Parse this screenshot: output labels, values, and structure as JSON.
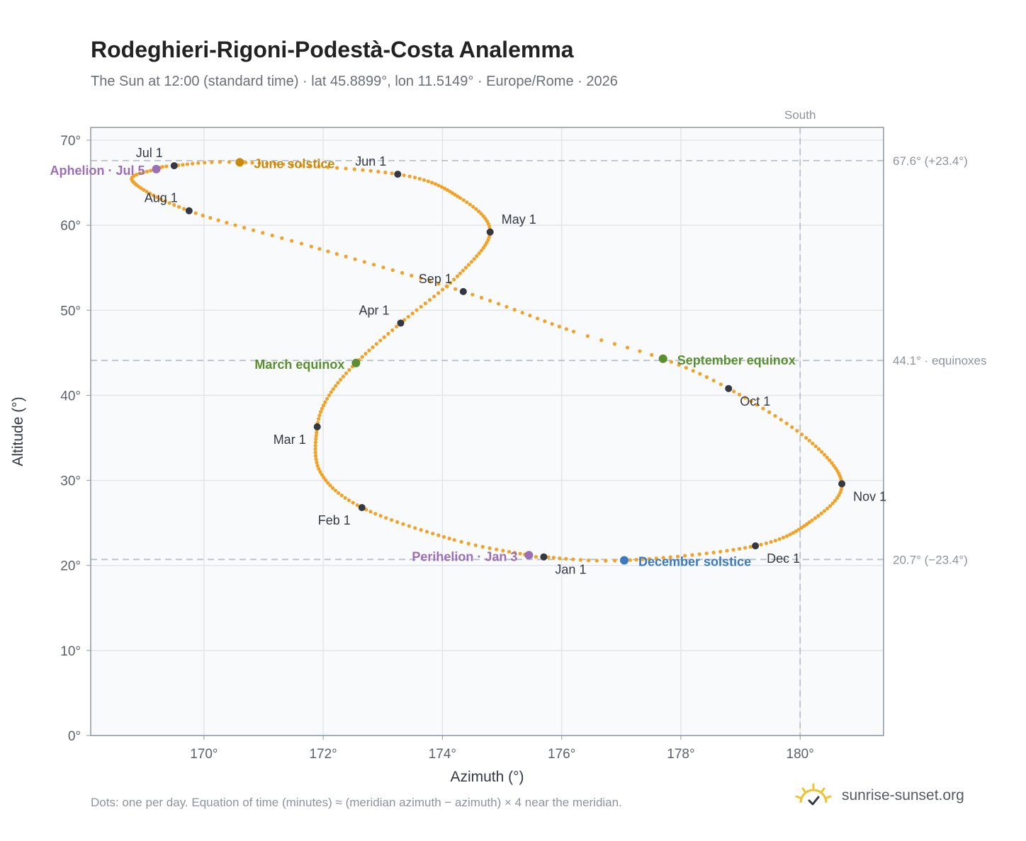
{
  "header": {
    "title": "Rodeghieri-Rigoni-Podestà-Costa Analemma",
    "subtitle": "The Sun at 12:00 (standard time) · lat 45.8899°, lon 11.5149° · Europe/Rome · 2026"
  },
  "footer": {
    "note": "Dots: one per day. Equation of time (minutes) ≈ (meridian azimuth − azimuth) × 4 near the meridian.",
    "brand": "sunrise-sunset.org",
    "brand_icon": "sun-logo-icon"
  },
  "colors": {
    "curve": "#f2a227",
    "month_dot": "#333842",
    "solstice_june": "#c98a0c",
    "solstice_december": "#3a78c0",
    "equinox": "#5a8f2f",
    "apsis": "#9b6fb5",
    "reference_line": "#b9c1ca",
    "plot_background": "#f8fafc"
  },
  "chart_data": {
    "type": "scatter",
    "xlabel": "Azimuth (°)",
    "ylabel": "Altitude (°)",
    "xlim": [
      168.1,
      181.4
    ],
    "ylim": [
      0,
      71.5
    ],
    "xticks": [
      170,
      172,
      174,
      176,
      178,
      180
    ],
    "xtick_labels": [
      "170°",
      "172°",
      "174°",
      "176°",
      "178°",
      "180°"
    ],
    "yticks": [
      0,
      10,
      20,
      30,
      40,
      50,
      60,
      70
    ],
    "ytick_labels": [
      "0°",
      "10°",
      "20°",
      "30°",
      "40°",
      "50°",
      "60°",
      "70°"
    ],
    "grid": true,
    "marker_note": "one dot per day",
    "daily_path_anchors": [
      {
        "date": "Jan 1",
        "az": 175.7,
        "alt": 21.0
      },
      {
        "date": "Jan 3",
        "az": 175.45,
        "alt": 21.2
      },
      {
        "date": "Jan 15",
        "az": 174.2,
        "alt": 23.0
      },
      {
        "date": "Feb 1",
        "az": 172.65,
        "alt": 26.8
      },
      {
        "date": "Feb 15",
        "az": 171.95,
        "alt": 31.0
      },
      {
        "date": "Mar 1",
        "az": 171.9,
        "alt": 36.3
      },
      {
        "date": "Mar 10",
        "az": 172.1,
        "alt": 40.0
      },
      {
        "date": "Mar 20",
        "az": 172.55,
        "alt": 43.8
      },
      {
        "date": "Apr 1",
        "az": 173.3,
        "alt": 48.5
      },
      {
        "date": "Apr 15",
        "az": 174.25,
        "alt": 54.0
      },
      {
        "date": "May 1",
        "az": 174.8,
        "alt": 59.2
      },
      {
        "date": "May 15",
        "az": 174.3,
        "alt": 63.2
      },
      {
        "date": "Jun 1",
        "az": 173.25,
        "alt": 66.0
      },
      {
        "date": "Jun 21",
        "az": 170.6,
        "alt": 67.4
      },
      {
        "date": "Jul 1",
        "az": 169.5,
        "alt": 67.0
      },
      {
        "date": "Jul 5",
        "az": 169.2,
        "alt": 66.6
      },
      {
        "date": "Jul 15",
        "az": 168.8,
        "alt": 65.2
      },
      {
        "date": "Aug 1",
        "az": 169.75,
        "alt": 61.7
      },
      {
        "date": "Aug 15",
        "az": 171.8,
        "alt": 57.5
      },
      {
        "date": "Sep 1",
        "az": 174.35,
        "alt": 52.2
      },
      {
        "date": "Sep 15",
        "az": 176.2,
        "alt": 47.5
      },
      {
        "date": "Sep 22",
        "az": 177.7,
        "alt": 44.3
      },
      {
        "date": "Oct 1",
        "az": 178.8,
        "alt": 40.8
      },
      {
        "date": "Oct 15",
        "az": 180.1,
        "alt": 35.0
      },
      {
        "date": "Nov 1",
        "az": 180.7,
        "alt": 29.6
      },
      {
        "date": "Nov 15",
        "az": 180.2,
        "alt": 25.3
      },
      {
        "date": "Dec 1",
        "az": 179.25,
        "alt": 22.3
      },
      {
        "date": "Dec 21",
        "az": 177.05,
        "alt": 20.6
      },
      {
        "date": "Jan 1",
        "az": 175.7,
        "alt": 21.0
      }
    ],
    "month_markers": [
      {
        "label": "Jan 1",
        "az": 175.7,
        "alt": 21.0,
        "pos": "below-right"
      },
      {
        "label": "Feb 1",
        "az": 172.65,
        "alt": 26.8,
        "pos": "below-left"
      },
      {
        "label": "Mar 1",
        "az": 171.9,
        "alt": 36.3,
        "pos": "below-left"
      },
      {
        "label": "Apr 1",
        "az": 173.3,
        "alt": 48.5,
        "pos": "above-left"
      },
      {
        "label": "May 1",
        "az": 174.8,
        "alt": 59.2,
        "pos": "above-right"
      },
      {
        "label": "Jun 1",
        "az": 173.25,
        "alt": 66.0,
        "pos": "above-left"
      },
      {
        "label": "Jul 1",
        "az": 169.5,
        "alt": 67.0,
        "pos": "above-left"
      },
      {
        "label": "Aug 1",
        "az": 169.75,
        "alt": 61.7,
        "pos": "above-left"
      },
      {
        "label": "Sep 1",
        "az": 174.35,
        "alt": 52.2,
        "pos": "above-left"
      },
      {
        "label": "Oct 1",
        "az": 178.8,
        "alt": 40.8,
        "pos": "below-right"
      },
      {
        "label": "Nov 1",
        "az": 180.7,
        "alt": 29.6,
        "pos": "below-right"
      },
      {
        "label": "Dec 1",
        "az": 179.25,
        "alt": 22.3,
        "pos": "below-right"
      }
    ],
    "events": [
      {
        "label": "June solstice",
        "az": 170.6,
        "alt": 67.4,
        "color": "#c98a0c",
        "pos": "right"
      },
      {
        "label": "December solstice",
        "az": 177.05,
        "alt": 20.6,
        "color": "#3a78c0",
        "pos": "right"
      },
      {
        "label": "March equinox",
        "az": 172.55,
        "alt": 43.8,
        "color": "#5a8f2f",
        "pos": "left"
      },
      {
        "label": "September equinox",
        "az": 177.7,
        "alt": 44.3,
        "color": "#5a8f2f",
        "pos": "right"
      },
      {
        "label": "Aphelion · Jul 5",
        "az": 169.2,
        "alt": 66.6,
        "color": "#9b6fb5",
        "pos": "left"
      },
      {
        "label": "Perihelion · Jan 3",
        "az": 175.45,
        "alt": 21.2,
        "color": "#9b6fb5",
        "pos": "left"
      }
    ],
    "reference_lines": {
      "horizontal": [
        {
          "alt": 67.6,
          "label": "67.6° (+23.4°)"
        },
        {
          "alt": 44.1,
          "label": "44.1° · equinoxes"
        },
        {
          "alt": 20.7,
          "label": "20.7° (−23.4°)"
        }
      ],
      "vertical": [
        {
          "az": 180,
          "label": "South"
        }
      ]
    }
  }
}
